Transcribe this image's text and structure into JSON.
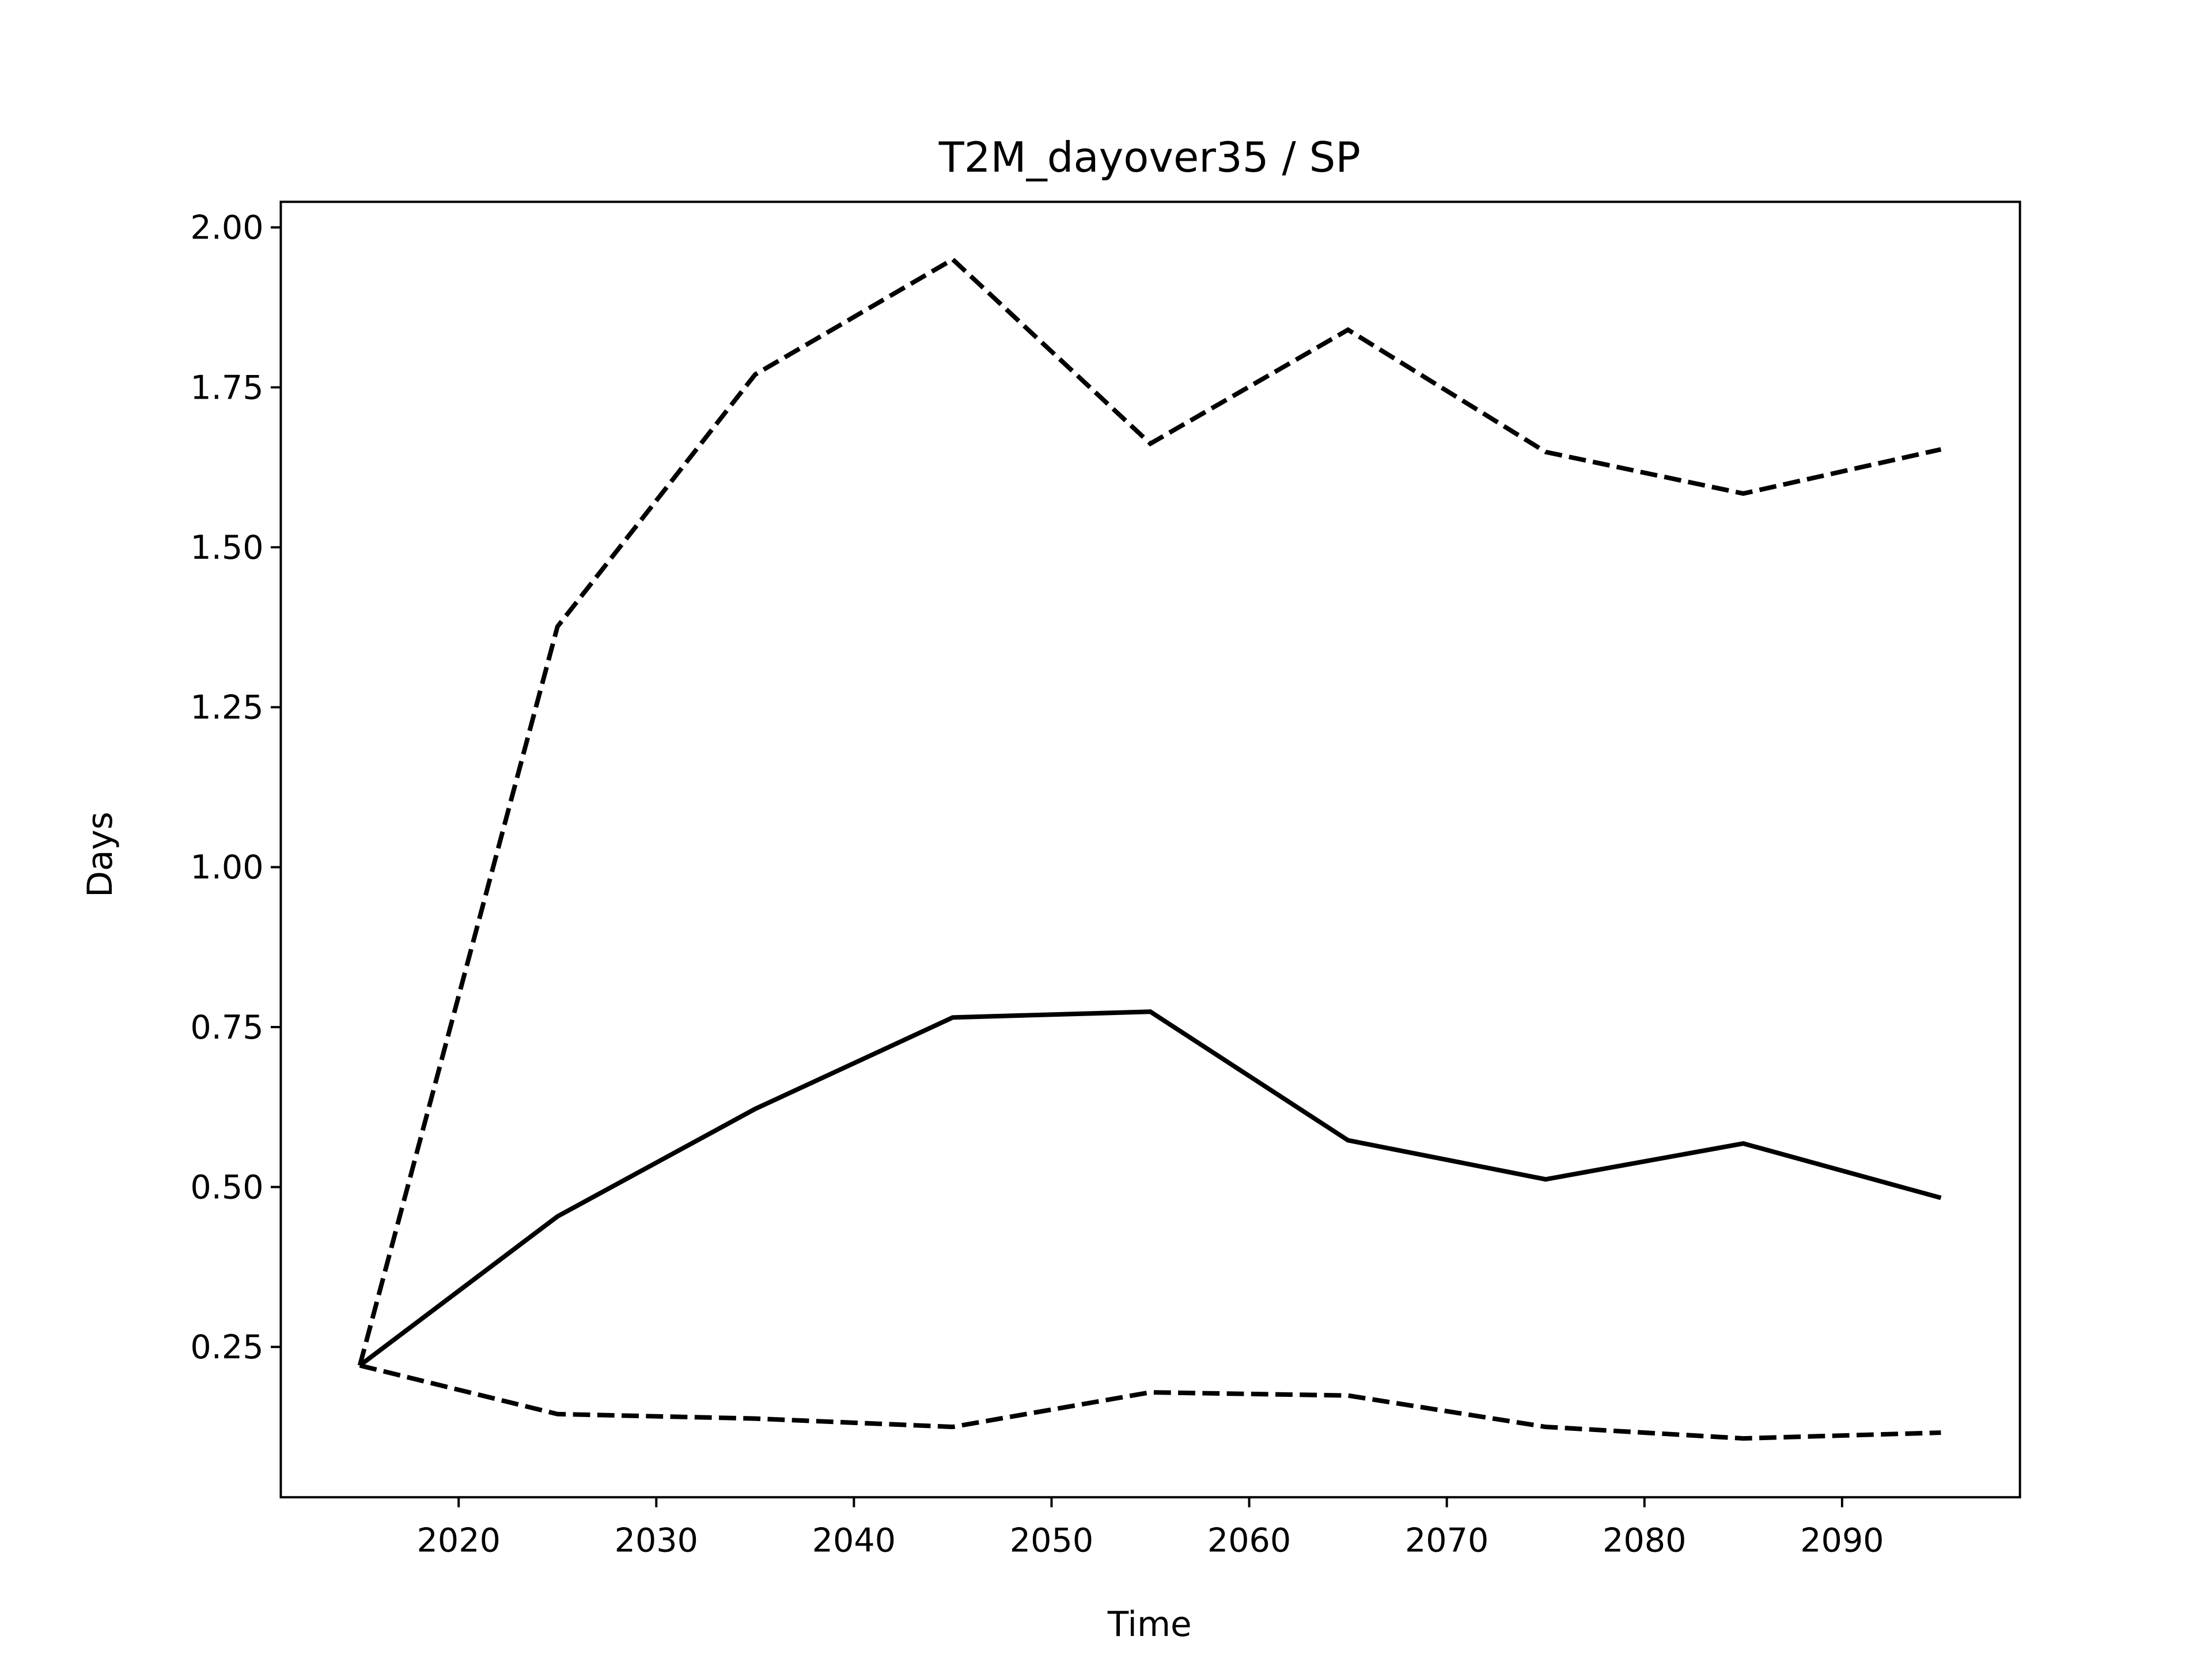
{
  "chart_data": {
    "type": "line",
    "title": "T2M_dayover35 / SP",
    "xlabel": "Time",
    "ylabel": "Days",
    "x": [
      2015,
      2025,
      2035,
      2045,
      2055,
      2065,
      2075,
      2085,
      2095
    ],
    "series": [
      {
        "color": "#000000",
        "linestyle": "solid",
        "values": [
          0.221,
          0.454,
          0.622,
          0.765,
          0.774,
          0.573,
          0.512,
          0.568,
          0.483
        ]
      },
      {
        "color": "#000000",
        "linestyle": "dashed",
        "values": [
          0.221,
          1.376,
          1.77,
          1.95,
          1.662,
          1.84,
          1.649,
          1.584,
          1.653
        ]
      },
      {
        "color": "#000000",
        "linestyle": "dashed",
        "values": [
          0.221,
          0.145,
          0.138,
          0.125,
          0.179,
          0.174,
          0.125,
          0.107,
          0.116
        ]
      }
    ],
    "xlim": [
      2011,
      2099
    ],
    "ylim": [
      0.015,
      2.04
    ],
    "xticks": [
      2020,
      2030,
      2040,
      2050,
      2060,
      2070,
      2080,
      2090
    ],
    "yticks": [
      {
        "value": 0.25,
        "label": "0.25"
      },
      {
        "value": 0.5,
        "label": "0.50"
      },
      {
        "value": 0.75,
        "label": "0.75"
      },
      {
        "value": 1.0,
        "label": "1.00"
      },
      {
        "value": 1.25,
        "label": "1.25"
      },
      {
        "value": 1.5,
        "label": "1.50"
      },
      {
        "value": 1.75,
        "label": "1.75"
      },
      {
        "value": 2.0,
        "label": "2.00"
      }
    ],
    "grid": false
  }
}
